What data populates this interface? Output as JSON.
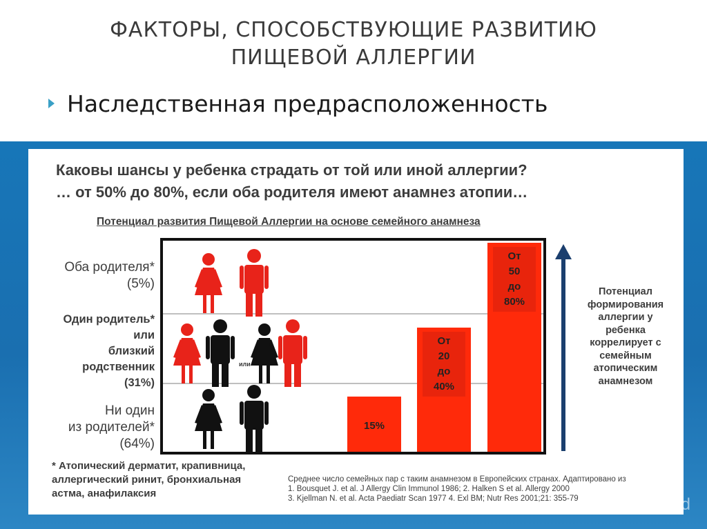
{
  "slide": {
    "title_line1": "ФАКТОРЫ, СПОСОБСТВУЮЩИЕ РАЗВИТИЮ",
    "title_line2": "ПИЩЕВОЙ АЛЛЕРГИИ",
    "bullet": "Наследственная предрасположенность",
    "watermark": "MyShared"
  },
  "panel": {
    "question_line1": "Каковы шансы у ребенка страдать от той или иной аллергии?",
    "question_line2": "… от 50% до 80%, если оба родителя имеют анамнез атопии…",
    "subtitle": "Потенциал развития Пищевой Аллергии на основе семейного анамнеза",
    "rows": [
      {
        "lines": [
          "Оба родителя*",
          "(5%)"
        ],
        "bold": false
      },
      {
        "lines": [
          "Один родитель*",
          "или",
          "близкий",
          "родственник",
          "(31%)"
        ],
        "bold": true
      },
      {
        "lines": [
          "Ни один",
          "из родителей*",
          "(64%)"
        ],
        "bold": false
      }
    ],
    "ili_label": "или",
    "arrow_text": [
      "Потенциал",
      "формирования",
      "аллергии у",
      "ребенка",
      "коррелирует с",
      "семейным",
      "атопическим",
      "анамнезом"
    ],
    "footnote": [
      "* Атопический дерматит, крапивница,",
      "аллергический ринит, бронхиальная",
      "астма, анафилаксия"
    ],
    "references": [
      "Среднее число семейных пар с таким анамнезом в Европейских странах. Адаптировано из",
      "1. Bousquet J. et al. J Allergy Clin Immunol 1986; 2. Halken S et al. Allergy 2000",
      "3. Kjellman N. et al. Acta Paediatr Scan 1977 4. Exl BM; Nutr Res 2001;21: 355-79"
    ]
  },
  "chart_data": {
    "type": "bar",
    "categories": [
      "Ни один из родителей",
      "Один родитель или близкий родственник",
      "Оба родителя"
    ],
    "values_range": [
      [
        15,
        15
      ],
      [
        20,
        40
      ],
      [
        50,
        80
      ]
    ],
    "data_labels": [
      [
        "15%"
      ],
      [
        "От",
        "20",
        "до",
        "40%"
      ],
      [
        "От",
        "50",
        "до",
        "80%"
      ]
    ],
    "ylim": [
      0,
      80
    ]
  },
  "colors": {
    "bar": "#ff2a0a",
    "bar_label_bg": "#e8240c",
    "female_red": "#e8231a",
    "figure_black": "#111111",
    "arrow": "#1b3f6e",
    "band": "#1776b8"
  }
}
